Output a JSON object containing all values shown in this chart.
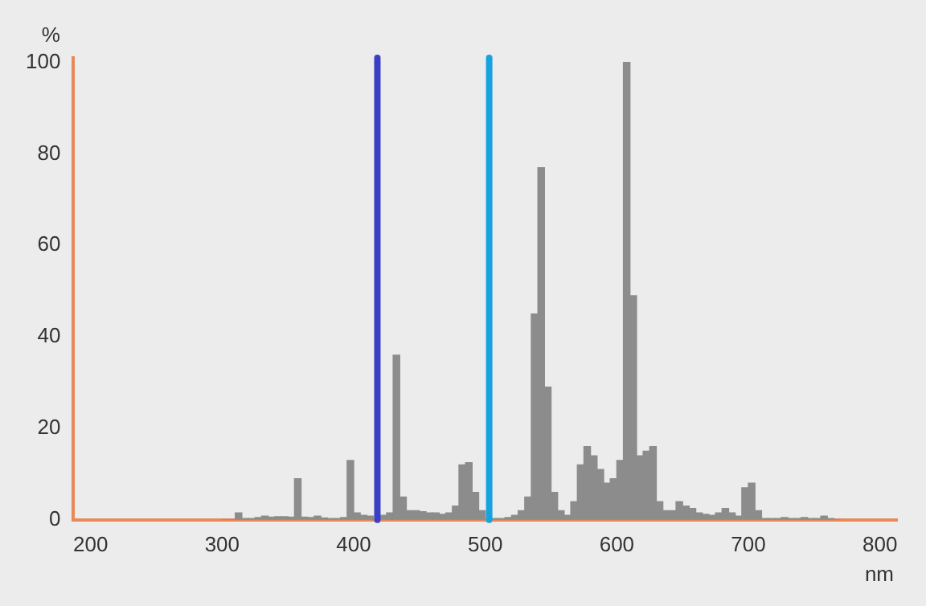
{
  "chart_data": {
    "type": "histogram",
    "ylabel": "%",
    "xlabel": "nm",
    "bins": [
      300,
      305,
      310,
      315,
      320,
      325,
      330,
      335,
      340,
      345,
      350,
      355,
      360,
      365,
      370,
      375,
      380,
      385,
      390,
      395,
      400,
      405,
      410,
      415,
      420,
      425,
      430,
      435,
      440,
      445,
      450,
      455,
      460,
      465,
      470,
      475,
      480,
      485,
      490,
      495,
      500,
      505,
      510,
      515,
      520,
      525,
      530,
      535,
      540,
      545,
      550,
      555,
      560,
      565,
      570,
      575,
      580,
      585,
      590,
      595,
      600,
      605,
      610,
      615,
      620,
      625,
      630,
      635,
      640,
      645,
      650,
      655,
      660,
      665,
      670,
      675,
      680,
      685,
      690,
      695,
      700,
      705,
      710,
      715,
      720,
      725,
      730,
      735,
      740,
      745,
      750,
      755,
      760,
      765,
      770
    ],
    "values": [
      0,
      0,
      1.5,
      0.3,
      0.3,
      0.5,
      0.8,
      0.6,
      0.7,
      0.7,
      0.6,
      9,
      0.6,
      0.5,
      0.8,
      0.4,
      0.3,
      0.3,
      0.5,
      13,
      1.5,
      1,
      0.8,
      null,
      1,
      1.5,
      36,
      5,
      2,
      2,
      1.8,
      1.5,
      1.5,
      1.2,
      1.5,
      3,
      12,
      12.5,
      6,
      2,
      null,
      0.3,
      0.3,
      0.5,
      1,
      2,
      5,
      45,
      77,
      29,
      6,
      2,
      1,
      4,
      12,
      16,
      14,
      11,
      8,
      9,
      13,
      100,
      49,
      14,
      15,
      16,
      4,
      2,
      2,
      4,
      3,
      2.5,
      1.5,
      1.2,
      1,
      1.5,
      2.5,
      1.5,
      0.8,
      7,
      8,
      2,
      0.3,
      0.3,
      0.3,
      0.5,
      0.3,
      0.3,
      0.5,
      0.3,
      0.3,
      0.8,
      0.3,
      0
    ],
    "color": "#8c8c8c",
    "xlim": [
      187,
      813
    ],
    "xticks": [
      200,
      300,
      400,
      500,
      600,
      700,
      800
    ],
    "ylim": [
      0,
      101
    ],
    "yticks": [
      0,
      20,
      40,
      60,
      80,
      100
    ],
    "grid": false,
    "legend": false,
    "ref_lines": [
      {
        "axis": "x",
        "value": 418,
        "color": "#3a3fc4"
      },
      {
        "axis": "x",
        "value": 503,
        "color": "#17a2e0"
      }
    ]
  }
}
